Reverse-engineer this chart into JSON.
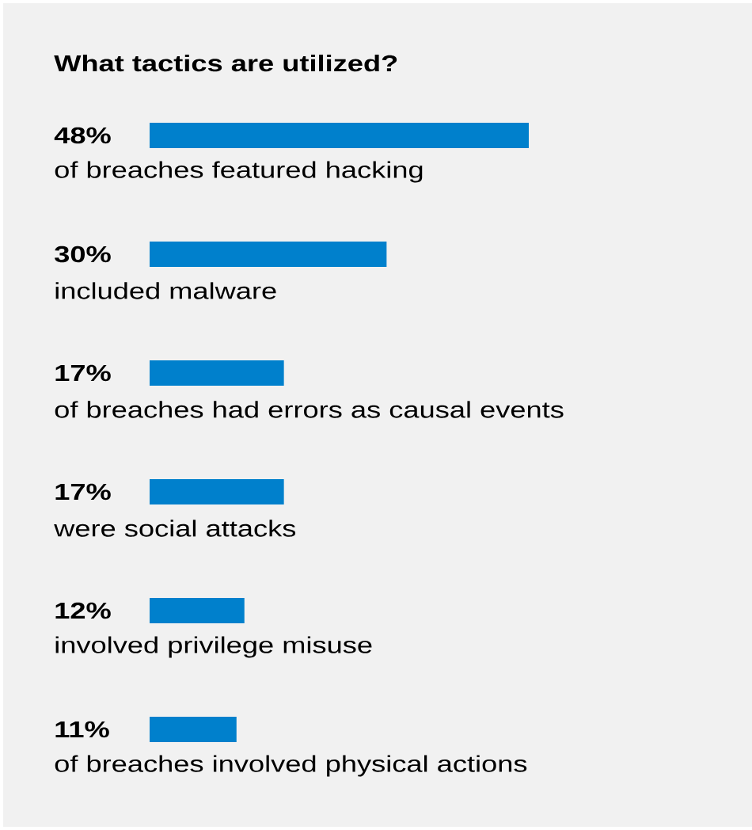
{
  "chart_data": {
    "type": "bar",
    "orientation": "horizontal",
    "tick_labels": false,
    "title": "What tactics are utilized?",
    "categories": [
      "of breaches featured hacking",
      "included malware",
      "of breaches had errors as causal events",
      "were social attacks",
      "involved privilege misuse",
      "of breaches involved physical actions"
    ],
    "values": [
      48,
      30,
      17,
      17,
      12,
      11
    ],
    "value_labels": [
      "48%",
      "30%",
      "17%",
      "17%",
      "12%",
      "11%"
    ],
    "color": "#0080cc"
  }
}
